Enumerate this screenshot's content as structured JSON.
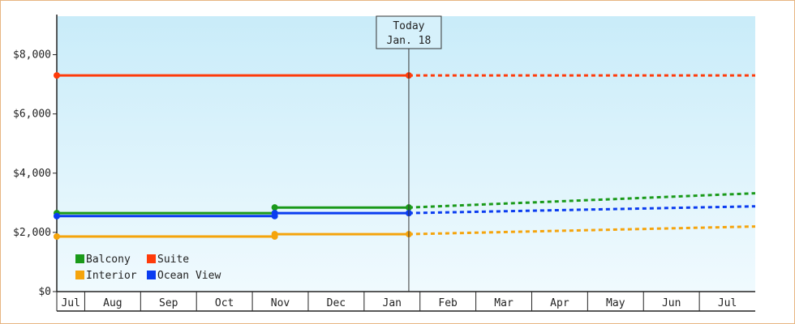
{
  "chart_data": {
    "type": "line",
    "title": "",
    "xlabel": "",
    "ylabel": "",
    "ylim": [
      0,
      9300
    ],
    "yticks": [
      0,
      2000,
      4000,
      6000,
      8000
    ],
    "ytick_labels": [
      "$0",
      "$2,000",
      "$4,000",
      "$6,000",
      "$8,000"
    ],
    "months": [
      "Jul",
      "Aug",
      "Sep",
      "Oct",
      "Nov",
      "Dec",
      "Jan",
      "Feb",
      "Mar",
      "Apr",
      "May",
      "Jun",
      "Jul"
    ],
    "today": {
      "line1": "Today",
      "line2": "Jan. 18",
      "x": 6.3
    },
    "legend_position": "bottom-left",
    "grid": false,
    "series": [
      {
        "name": "Balcony",
        "color": "#1a9a1a",
        "actual": [
          [
            0,
            2650
          ],
          [
            3.9,
            2650
          ],
          [
            3.9,
            2840
          ],
          [
            6.3,
            2840
          ]
        ],
        "projected": [
          [
            6.3,
            2840
          ],
          [
            12.5,
            3320
          ]
        ]
      },
      {
        "name": "Suite",
        "color": "#ff3b0a",
        "actual": [
          [
            0,
            7300
          ],
          [
            6.3,
            7300
          ]
        ],
        "projected": [
          [
            6.3,
            7300
          ],
          [
            12.5,
            7300
          ]
        ]
      },
      {
        "name": "Interior",
        "color": "#f5a40c",
        "actual": [
          [
            0,
            1860
          ],
          [
            3.9,
            1860
          ],
          [
            3.9,
            1940
          ],
          [
            6.3,
            1940
          ]
        ],
        "projected": [
          [
            6.3,
            1940
          ],
          [
            12.5,
            2200
          ]
        ]
      },
      {
        "name": "Ocean View",
        "color": "#0a3cf0",
        "actual": [
          [
            0,
            2550
          ],
          [
            3.9,
            2550
          ],
          [
            3.9,
            2650
          ],
          [
            6.3,
            2650
          ]
        ],
        "projected": [
          [
            6.3,
            2650
          ],
          [
            12.5,
            2880
          ]
        ]
      }
    ]
  }
}
